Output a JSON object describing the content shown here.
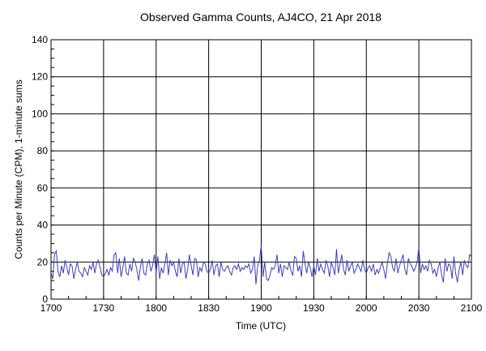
{
  "chart_data": {
    "type": "line",
    "title": "Observed Gamma Counts, AJ4CO, 21 Apr 2018",
    "xlabel": "Time (UTC)",
    "ylabel": "Counts per Minute (CPM), 1-minute sums",
    "xlim_minutes": [
      0,
      240
    ],
    "ylim": [
      0,
      140
    ],
    "grid": true,
    "x_tick_labels": [
      "1700",
      "1730",
      "1800",
      "1830",
      "1900",
      "1930",
      "2000",
      "2030",
      "2100"
    ],
    "y_tick_labels": [
      "0",
      "20",
      "40",
      "60",
      "80",
      "100",
      "120",
      "140"
    ],
    "series": [
      {
        "name": "CPM",
        "color": "#4040a8",
        "x_unit": "minutes after 1700 UTC",
        "values": [
          14,
          11,
          24,
          26,
          15,
          12,
          18,
          14,
          21,
          17,
          13,
          19,
          18,
          11,
          16,
          20,
          15,
          14,
          12,
          17,
          15,
          13,
          18,
          16,
          20,
          14,
          19,
          21,
          17,
          13,
          12,
          14,
          16,
          13,
          17,
          15,
          24,
          25,
          14,
          22,
          12,
          17,
          23,
          14,
          13,
          19,
          15,
          22,
          20,
          16,
          10,
          17,
          22,
          14,
          13,
          19,
          21,
          15,
          18,
          24,
          14,
          23,
          11,
          17,
          14,
          19,
          25,
          13,
          21,
          18,
          20,
          15,
          12,
          22,
          14,
          19,
          20,
          11,
          16,
          24,
          18,
          13,
          22,
          21,
          12,
          17,
          15,
          20,
          19,
          15,
          14,
          16,
          21,
          13,
          18,
          19,
          12,
          20,
          16,
          15,
          17,
          18,
          15,
          13,
          17,
          18,
          16,
          19,
          15,
          17,
          16,
          18,
          17,
          19,
          14,
          16,
          23,
          8,
          18,
          21,
          29,
          12,
          20,
          11,
          10,
          13,
          17,
          16,
          18,
          24,
          14,
          19,
          12,
          18,
          17,
          16,
          20,
          15,
          13,
          23,
          22,
          15,
          18,
          12,
          26,
          19,
          14,
          20,
          17,
          12,
          18,
          13,
          22,
          15,
          19,
          16,
          14,
          21,
          18,
          12,
          20,
          17,
          13,
          27,
          14,
          19,
          24,
          16,
          13,
          21,
          15,
          18,
          20,
          14,
          16,
          19,
          17,
          15,
          21,
          16,
          14,
          17,
          18,
          15,
          19,
          13,
          16,
          14,
          17,
          20,
          16,
          11,
          19,
          25,
          23,
          17,
          15,
          22,
          14,
          18,
          21,
          24,
          16,
          13,
          22,
          19,
          18,
          15,
          17,
          20,
          28,
          14,
          19,
          16,
          18,
          15,
          21,
          19,
          14,
          16,
          12,
          17,
          20,
          13,
          9,
          22,
          15,
          19,
          18,
          11,
          23,
          14,
          9,
          16,
          20,
          13,
          21,
          18,
          17,
          24,
          23
        ]
      }
    ]
  }
}
